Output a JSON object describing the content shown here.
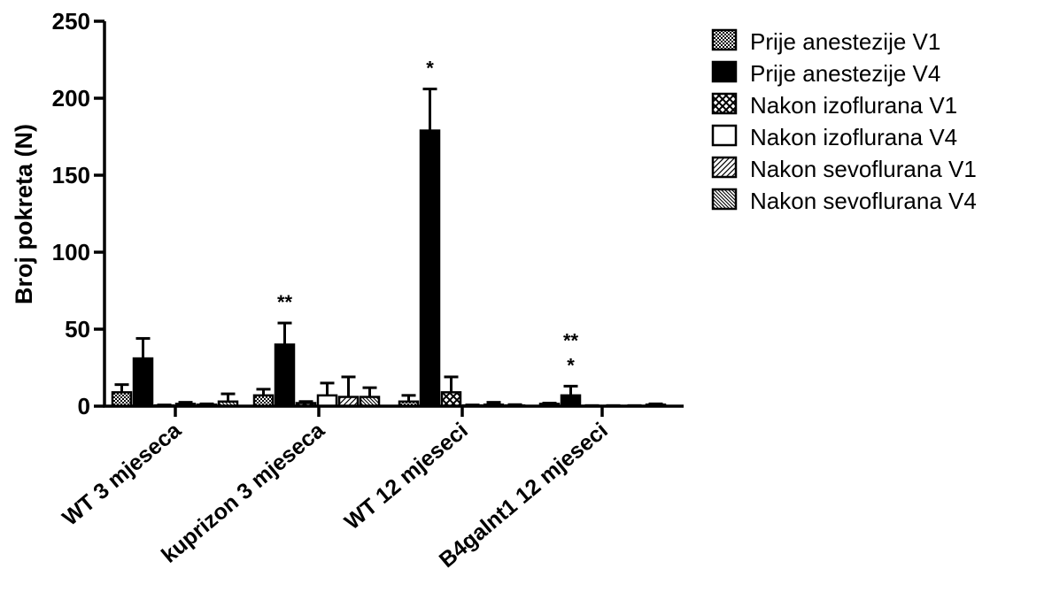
{
  "chart_data": {
    "type": "bar",
    "title": "",
    "xlabel": "",
    "ylabel": "Broj pokreta (N)",
    "ylim": [
      0,
      250
    ],
    "yticks": [
      0,
      50,
      100,
      150,
      200,
      250
    ],
    "grid": false,
    "legend_position": "right",
    "categories": [
      "WT 3 mjeseca",
      "kuprizon 3 mjeseca",
      "WT 12 mjeseci",
      "B4galnt1 12 mjeseci"
    ],
    "series": [
      {
        "name": "Prije anestezije V1",
        "pattern": "checker",
        "values": [
          9,
          7,
          3,
          1.5
        ],
        "errors": [
          5,
          4,
          4,
          0.5
        ]
      },
      {
        "name": "Prije anestezije V4",
        "pattern": "solid",
        "values": [
          31,
          40,
          179,
          7
        ],
        "errors": [
          13,
          14,
          27,
          6
        ]
      },
      {
        "name": "Nakon izoflurana V1",
        "pattern": "crosshatch",
        "values": [
          0.5,
          2,
          9,
          0.2
        ],
        "errors": [
          0.3,
          1,
          10,
          0.2
        ]
      },
      {
        "name": "Nakon izoflurana V4",
        "pattern": "empty",
        "values": [
          1.5,
          7,
          0.5,
          0.2
        ],
        "errors": [
          1,
          8,
          0.3,
          0.2
        ]
      },
      {
        "name": "Nakon sevoflurana V1",
        "pattern": "diag",
        "values": [
          1,
          6,
          1,
          0.2
        ],
        "errors": [
          0.5,
          13,
          1.5,
          0.2
        ]
      },
      {
        "name": "Nakon sevoflurana V4",
        "pattern": "diag-dense",
        "values": [
          3,
          6,
          0.5,
          1
        ],
        "errors": [
          5,
          6,
          0.5,
          0.5
        ]
      }
    ],
    "annotations": [
      {
        "category_index": 2,
        "series_index": 1,
        "text": "*"
      },
      {
        "category_index": 1,
        "series_index": 1,
        "text": "**"
      },
      {
        "category_index": 3,
        "series_index": 1,
        "text": "**"
      },
      {
        "category_index": 3,
        "series_index": 1,
        "text": "*"
      }
    ]
  }
}
